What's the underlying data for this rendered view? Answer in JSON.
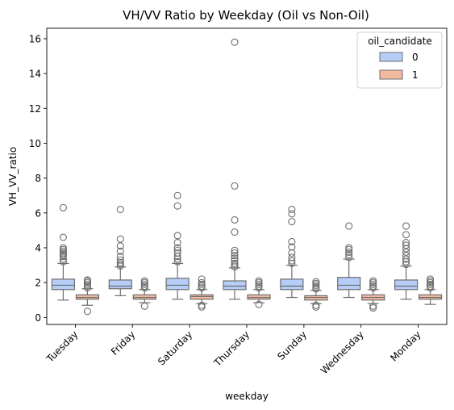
{
  "chart_data": {
    "type": "box",
    "title": "VH/VV Ratio by Weekday (Oil vs Non-Oil)",
    "xlabel": "weekday",
    "ylabel": "VH_VV_ratio",
    "ylim": [
      -0.4,
      16.6
    ],
    "yticks": [
      0,
      2,
      4,
      6,
      8,
      10,
      12,
      14,
      16
    ],
    "grid": false,
    "categories": [
      "Tuesday",
      "Friday",
      "Saturday",
      "Thursday",
      "Sunday",
      "Wednesday",
      "Monday"
    ],
    "legend": {
      "title": "oil_candidate",
      "placement": "top-right"
    },
    "series": [
      {
        "name": "0",
        "color": "#b6cdf7",
        "boxes": [
          {
            "whislo": 1.0,
            "q1": 1.6,
            "med": 1.85,
            "q3": 2.2,
            "whishi": 3.1,
            "fliers": [
              3.2,
              3.35,
              3.5,
              3.6,
              3.7,
              3.8,
              3.9,
              4.0,
              4.6,
              6.3
            ]
          },
          {
            "whislo": 1.25,
            "q1": 1.65,
            "med": 1.8,
            "q3": 2.15,
            "whishi": 2.9,
            "fliers": [
              2.95,
              3.05,
              3.15,
              3.3,
              3.5,
              3.8,
              4.1,
              4.5,
              6.2
            ]
          },
          {
            "whislo": 1.05,
            "q1": 1.6,
            "med": 1.85,
            "q3": 2.25,
            "whishi": 3.1,
            "fliers": [
              3.2,
              3.35,
              3.5,
              3.7,
              3.85,
              4.0,
              4.3,
              4.7,
              6.4,
              7.0
            ]
          },
          {
            "whislo": 1.05,
            "q1": 1.6,
            "med": 1.8,
            "q3": 2.1,
            "whishi": 2.85,
            "fliers": [
              2.9,
              3.0,
              3.1,
              3.25,
              3.4,
              3.55,
              3.7,
              3.85,
              4.9,
              5.6,
              7.55,
              15.8
            ]
          },
          {
            "whislo": 1.15,
            "q1": 1.6,
            "med": 1.8,
            "q3": 2.2,
            "whishi": 3.0,
            "fliers": [
              3.1,
              3.25,
              3.45,
              3.7,
              4.05,
              4.35,
              5.5,
              5.95,
              6.2
            ]
          },
          {
            "whislo": 1.15,
            "q1": 1.6,
            "med": 1.85,
            "q3": 2.3,
            "whishi": 3.35,
            "fliers": [
              3.45,
              3.6,
              3.75,
              3.9,
              4.0,
              5.25
            ]
          },
          {
            "whislo": 1.05,
            "q1": 1.6,
            "med": 1.8,
            "q3": 2.15,
            "whishi": 2.95,
            "fliers": [
              3.05,
              3.2,
              3.35,
              3.55,
              3.75,
              3.95,
              4.15,
              4.3,
              4.75,
              5.25
            ]
          }
        ]
      },
      {
        "name": "1",
        "color": "#f2b9a1",
        "boxes": [
          {
            "whislo": 0.7,
            "q1": 1.05,
            "med": 1.15,
            "q3": 1.3,
            "whishi": 1.65,
            "fliers": [
              0.35,
              1.7,
              1.8,
              1.9,
              2.0,
              2.1,
              2.15
            ]
          },
          {
            "whislo": 0.85,
            "q1": 1.05,
            "med": 1.15,
            "q3": 1.3,
            "whishi": 1.6,
            "fliers": [
              0.65,
              1.7,
              1.8,
              1.9,
              2.0,
              2.1
            ]
          },
          {
            "whislo": 0.8,
            "q1": 1.05,
            "med": 1.2,
            "q3": 1.3,
            "whishi": 1.6,
            "fliers": [
              0.6,
              0.7,
              1.7,
              1.8,
              1.9,
              2.0,
              2.2
            ]
          },
          {
            "whislo": 0.85,
            "q1": 1.05,
            "med": 1.15,
            "q3": 1.3,
            "whishi": 1.6,
            "fliers": [
              0.75,
              1.7,
              1.8,
              1.9,
              2.0,
              2.1
            ]
          },
          {
            "whislo": 0.8,
            "q1": 1.0,
            "med": 1.15,
            "q3": 1.25,
            "whishi": 1.55,
            "fliers": [
              0.6,
              0.7,
              1.65,
              1.75,
              1.85,
              1.95,
              2.05
            ]
          },
          {
            "whislo": 0.8,
            "q1": 1.0,
            "med": 1.15,
            "q3": 1.3,
            "whishi": 1.6,
            "fliers": [
              0.55,
              0.65,
              1.7,
              1.8,
              1.9,
              2.0,
              2.1
            ]
          },
          {
            "whislo": 0.75,
            "q1": 1.05,
            "med": 1.15,
            "q3": 1.3,
            "whishi": 1.6,
            "fliers": [
              1.7,
              1.8,
              1.9,
              2.0,
              2.1,
              2.2
            ]
          }
        ]
      }
    ]
  }
}
